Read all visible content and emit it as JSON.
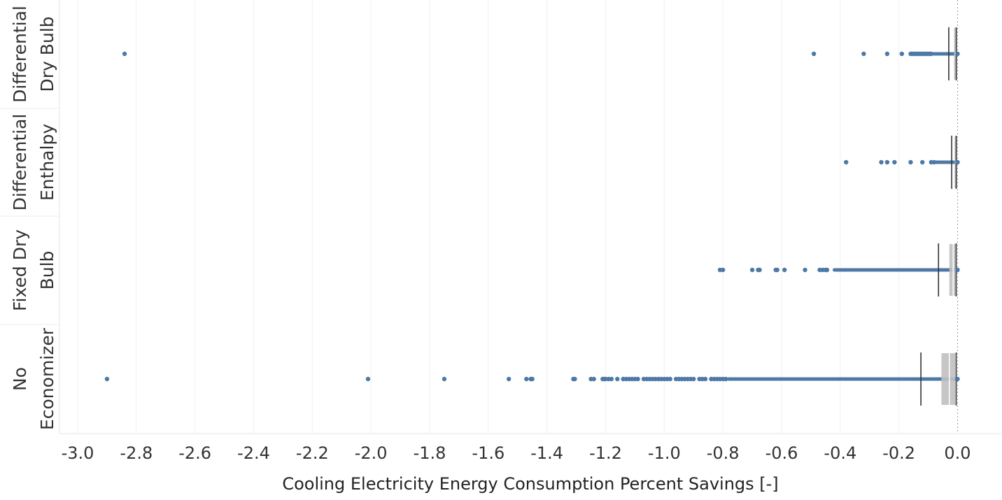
{
  "chart_data": {
    "type": "boxplot",
    "xlabel": "Cooling Electricity Energy Consumption Percent Savings [-]",
    "xlim": [
      -3.05,
      0.12
    ],
    "xticks": [
      "-3.0",
      "-2.8",
      "-2.6",
      "-2.4",
      "-2.2",
      "-2.0",
      "-1.8",
      "-1.6",
      "-1.4",
      "-1.2",
      "-1.0",
      "-0.8",
      "-0.6",
      "-0.4",
      "-0.2",
      "0.0"
    ],
    "xtick_values": [
      -3.0,
      -2.8,
      -2.6,
      -2.4,
      -2.2,
      -2.0,
      -1.8,
      -1.6,
      -1.4,
      -1.2,
      -1.0,
      -0.8,
      -0.6,
      -0.4,
      -0.2,
      0.0
    ],
    "grid": "vertical",
    "point_color": "#4e79a7",
    "box_color": "#c0c0c0",
    "whisker_color": "#333333",
    "categories": [
      {
        "label_lines": [
          "Differential",
          "Dry Bulb"
        ],
        "whisker_low": -0.03,
        "q1": -0.012,
        "median": -0.006,
        "q3": -0.001,
        "whisker_high": 0.0,
        "dense_range": [
          -0.16,
          0.0
        ],
        "outliers": [
          -2.84,
          -0.49,
          -0.32,
          -0.24,
          -0.19,
          -0.16,
          -0.155,
          -0.15,
          -0.145,
          -0.14,
          -0.135,
          -0.13,
          -0.125,
          -0.12,
          -0.115,
          -0.11,
          -0.105,
          -0.1,
          -0.095,
          -0.09
        ]
      },
      {
        "label_lines": [
          "Differential",
          "Enthalpy"
        ],
        "whisker_low": -0.02,
        "q1": -0.01,
        "median": -0.005,
        "q3": -0.001,
        "whisker_high": 0.0,
        "dense_range": [
          -0.09,
          0.0
        ],
        "outliers": [
          -0.38,
          -0.26,
          -0.24,
          -0.215,
          -0.16,
          -0.12,
          -0.09,
          -0.08
        ]
      },
      {
        "label_lines": [
          "Fixed Dry",
          "Bulb"
        ],
        "whisker_low": -0.065,
        "q1": -0.028,
        "median": -0.015,
        "q3": -0.004,
        "whisker_high": 0.0,
        "dense_range": [
          -0.42,
          0.0
        ],
        "outliers": [
          -0.81,
          -0.8,
          -0.7,
          -0.68,
          -0.675,
          -0.62,
          -0.615,
          -0.59,
          -0.52,
          -0.47,
          -0.46,
          -0.45,
          -0.445
        ]
      },
      {
        "label_lines": [
          "No",
          "Economizer"
        ],
        "whisker_low": -0.125,
        "q1": -0.055,
        "median": -0.028,
        "q3": -0.008,
        "whisker_high": 0.0,
        "dense_range": [
          -0.78,
          0.0
        ],
        "outliers": [
          -2.9,
          -2.01,
          -1.75,
          -1.53,
          -1.47,
          -1.455,
          -1.45,
          -1.31,
          -1.305,
          -1.25,
          -1.24,
          -1.21,
          -1.205,
          -1.2,
          -1.19,
          -1.18,
          -1.16,
          -1.14,
          -1.13,
          -1.12,
          -1.11,
          -1.1,
          -1.09,
          -1.07,
          -1.06,
          -1.05,
          -1.04,
          -1.03,
          -1.02,
          -1.01,
          -1.0,
          -0.99,
          -0.98,
          -0.96,
          -0.95,
          -0.94,
          -0.93,
          -0.92,
          -0.91,
          -0.9,
          -0.88,
          -0.87,
          -0.86,
          -0.84,
          -0.83,
          -0.82,
          -0.81,
          -0.8,
          -0.79
        ]
      }
    ]
  }
}
